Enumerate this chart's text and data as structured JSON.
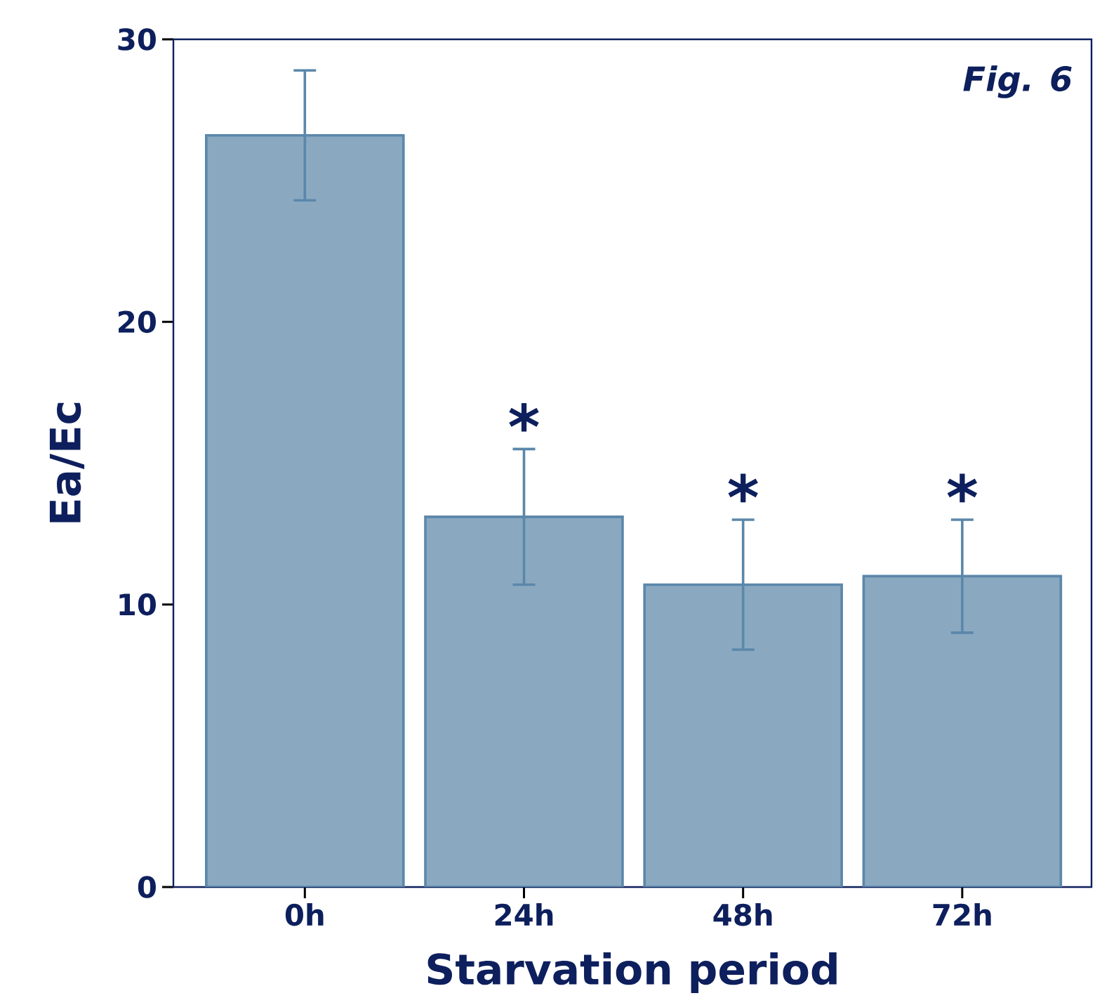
{
  "chart_data": {
    "type": "bar",
    "xlabel": "Starvation period",
    "ylabel": "Ea/Ec",
    "categories": [
      "0h",
      "24h",
      "48h",
      "72h"
    ],
    "values": [
      26.6,
      13.1,
      10.7,
      11.0
    ],
    "errors": [
      2.3,
      2.4,
      2.3,
      2.0
    ],
    "color": "#8aa9c1",
    "ylim": [
      0,
      30
    ],
    "yticks": [
      0,
      10,
      20,
      30
    ],
    "annotations": [
      "Fig. 6",
      "*",
      "*",
      "*"
    ]
  }
}
